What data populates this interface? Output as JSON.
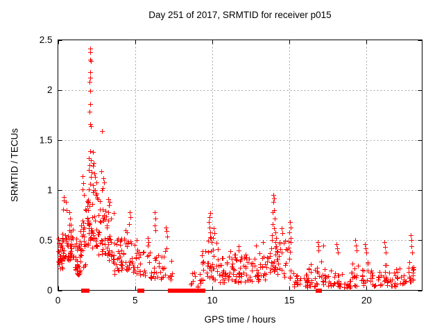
{
  "chart_data": {
    "type": "scatter",
    "title": "Day 251 of 2017, SRMTID for receiver p015",
    "xlabel": "GPS time / hours",
    "ylabel": "SRMTID / TECUs",
    "xlim": [
      0,
      23.6
    ],
    "ylim": [
      0,
      2.5
    ],
    "xticks": [
      0,
      5,
      10,
      15,
      20
    ],
    "yticks": [
      0,
      0.5,
      1,
      1.5,
      2,
      2.5
    ],
    "grid": true,
    "grid_style": "dashed",
    "legend_position": "none",
    "marker": "plus",
    "marker_color": "#ff0000",
    "grid_color": "#a0a0a0",
    "axis_color": "#000000",
    "background_color": "#ffffff",
    "series": [
      {
        "name": "SRMTID",
        "points": [
          [
            0.33,
            0.81
          ],
          [
            0.36,
            0.93
          ],
          [
            0.4,
            0.9
          ],
          [
            0.5,
            0.88
          ],
          [
            0.56,
            0.8
          ],
          [
            0.75,
            0.78
          ],
          [
            0.78,
            0.72
          ],
          [
            1.58,
            1.01
          ],
          [
            1.6,
            1.14
          ],
          [
            1.62,
            1.07
          ],
          [
            2.0,
            1.32
          ],
          [
            2.0,
            1.01
          ],
          [
            2.02,
            1.2
          ],
          [
            2.05,
            1.25
          ],
          [
            2.06,
            2.08
          ],
          [
            2.06,
            1.78
          ],
          [
            2.07,
            2.41
          ],
          [
            2.07,
            2.3
          ],
          [
            2.07,
            1.39
          ],
          [
            2.08,
            1.86
          ],
          [
            2.09,
            2.18
          ],
          [
            2.1,
            1.99
          ],
          [
            2.1,
            1.66
          ],
          [
            2.1,
            1.06
          ],
          [
            2.11,
            2.38
          ],
          [
            2.11,
            2.12
          ],
          [
            2.12,
            1.3
          ],
          [
            2.13,
            2.29
          ],
          [
            2.14,
            1.64
          ],
          [
            2.15,
            1.13
          ],
          [
            2.16,
            1.18
          ],
          [
            2.25,
            1.38
          ],
          [
            2.28,
            1.24
          ],
          [
            2.28,
            1.05
          ],
          [
            2.3,
            1.27
          ],
          [
            2.32,
            1.0
          ],
          [
            2.35,
            1.17
          ],
          [
            2.4,
            1.13
          ],
          [
            2.5,
            1.08
          ],
          [
            2.83,
            1.19
          ],
          [
            2.85,
            1.59
          ],
          [
            2.85,
            1.0
          ],
          [
            2.9,
            1.02
          ],
          [
            2.95,
            1.12
          ],
          [
            3.0,
            1.08
          ],
          [
            3.25,
            0.78
          ],
          [
            3.28,
            0.91
          ],
          [
            3.3,
            0.85
          ],
          [
            3.45,
            0.72
          ],
          [
            3.64,
            0.77
          ],
          [
            4.4,
            0.6
          ],
          [
            4.6,
            0.66
          ],
          [
            4.65,
            0.78
          ],
          [
            4.68,
            0.73
          ],
          [
            5.8,
            0.52
          ],
          [
            5.85,
            0.48
          ],
          [
            6.25,
            0.78
          ],
          [
            6.28,
            0.65
          ],
          [
            6.3,
            0.72
          ],
          [
            6.32,
            0.6
          ],
          [
            7.0,
            0.63
          ],
          [
            7.05,
            0.59
          ],
          [
            7.08,
            0.54
          ],
          [
            9.78,
            0.68
          ],
          [
            9.8,
            0.73
          ],
          [
            9.82,
            0.63
          ],
          [
            9.85,
            0.77
          ],
          [
            9.88,
            0.58
          ],
          [
            9.9,
            0.52
          ],
          [
            9.95,
            0.48
          ],
          [
            10.05,
            0.52
          ],
          [
            10.1,
            0.62
          ],
          [
            10.15,
            0.57
          ],
          [
            11.7,
            0.44
          ],
          [
            11.73,
            0.4
          ],
          [
            12.85,
            0.45
          ],
          [
            13.3,
            0.48
          ],
          [
            13.85,
            0.55
          ],
          [
            13.88,
            0.5
          ],
          [
            13.9,
            0.78
          ],
          [
            13.92,
            0.66
          ],
          [
            13.95,
            0.95
          ],
          [
            13.98,
            0.88
          ],
          [
            14.0,
            0.92
          ],
          [
            14.0,
            0.62
          ],
          [
            14.02,
            0.8
          ],
          [
            14.05,
            0.72
          ],
          [
            14.1,
            0.58
          ],
          [
            14.15,
            0.52
          ],
          [
            14.5,
            0.62
          ],
          [
            14.55,
            0.57
          ],
          [
            15.0,
            0.58
          ],
          [
            15.05,
            0.68
          ],
          [
            15.08,
            0.52
          ],
          [
            15.1,
            0.63
          ],
          [
            16.85,
            0.48
          ],
          [
            16.88,
            0.4
          ],
          [
            16.9,
            0.44
          ],
          [
            17.2,
            0.45
          ],
          [
            18.05,
            0.46
          ],
          [
            18.1,
            0.42
          ],
          [
            18.12,
            0.38
          ],
          [
            19.25,
            0.5
          ],
          [
            19.3,
            0.45
          ],
          [
            19.35,
            0.4
          ],
          [
            19.9,
            0.46
          ],
          [
            19.95,
            0.42
          ],
          [
            20.0,
            0.38
          ],
          [
            21.15,
            0.48
          ],
          [
            21.2,
            0.43
          ],
          [
            21.22,
            0.38
          ],
          [
            22.88,
            0.55
          ],
          [
            22.9,
            0.5
          ],
          [
            22.92,
            0.44
          ],
          [
            22.95,
            0.38
          ]
        ],
        "noise_bands": [
          [
            0.02,
            0.3,
            0.28,
            0.58,
            26
          ],
          [
            0.02,
            0.3,
            0.2,
            0.3,
            6
          ],
          [
            0.3,
            0.7,
            0.3,
            0.62,
            28
          ],
          [
            0.7,
            1.0,
            0.28,
            0.66,
            24
          ],
          [
            1.0,
            1.4,
            0.16,
            0.52,
            24
          ],
          [
            1.2,
            1.5,
            0.12,
            0.25,
            8
          ],
          [
            1.4,
            1.8,
            0.22,
            0.68,
            20
          ],
          [
            1.6,
            2.0,
            0.45,
            0.95,
            16
          ],
          [
            1.9,
            2.3,
            0.5,
            1.0,
            24
          ],
          [
            2.2,
            2.6,
            0.42,
            1.0,
            20
          ],
          [
            2.6,
            3.1,
            0.35,
            0.9,
            24
          ],
          [
            2.9,
            3.4,
            0.5,
            1.0,
            8
          ],
          [
            3.1,
            3.6,
            0.28,
            0.7,
            20
          ],
          [
            3.6,
            4.1,
            0.16,
            0.52,
            24
          ],
          [
            4.1,
            4.6,
            0.2,
            0.58,
            20
          ],
          [
            4.6,
            5.1,
            0.18,
            0.5,
            18
          ],
          [
            5.1,
            5.6,
            0.14,
            0.42,
            14
          ],
          [
            5.6,
            6.1,
            0.12,
            0.45,
            14
          ],
          [
            6.1,
            6.6,
            0.1,
            0.4,
            12
          ],
          [
            6.6,
            7.1,
            0.1,
            0.45,
            12
          ],
          [
            7.1,
            7.45,
            0.08,
            0.3,
            7
          ],
          [
            8.6,
            9.3,
            0.03,
            0.18,
            12
          ],
          [
            9.3,
            9.7,
            0.08,
            0.4,
            12
          ],
          [
            9.7,
            10.0,
            0.12,
            0.55,
            14
          ],
          [
            10.0,
            10.4,
            0.1,
            0.48,
            14
          ],
          [
            10.4,
            11.0,
            0.07,
            0.35,
            20
          ],
          [
            11.0,
            11.5,
            0.08,
            0.4,
            18
          ],
          [
            11.5,
            12.0,
            0.07,
            0.35,
            18
          ],
          [
            12.0,
            12.5,
            0.08,
            0.36,
            18
          ],
          [
            12.5,
            13.0,
            0.08,
            0.34,
            16
          ],
          [
            13.0,
            13.6,
            0.1,
            0.45,
            18
          ],
          [
            13.6,
            14.1,
            0.18,
            0.55,
            18
          ],
          [
            14.1,
            14.6,
            0.15,
            0.5,
            16
          ],
          [
            14.6,
            15.2,
            0.12,
            0.5,
            16
          ],
          [
            15.2,
            15.7,
            0.03,
            0.18,
            14
          ],
          [
            15.7,
            16.2,
            0.03,
            0.16,
            14
          ],
          [
            16.2,
            16.7,
            0.04,
            0.28,
            14
          ],
          [
            16.7,
            17.3,
            0.05,
            0.3,
            14
          ],
          [
            17.3,
            17.9,
            0.04,
            0.2,
            14
          ],
          [
            17.9,
            18.4,
            0.04,
            0.18,
            12
          ],
          [
            18.4,
            19.0,
            0.02,
            0.1,
            14
          ],
          [
            19.0,
            19.6,
            0.04,
            0.28,
            14
          ],
          [
            19.6,
            20.2,
            0.05,
            0.28,
            14
          ],
          [
            20.2,
            20.8,
            0.04,
            0.2,
            14
          ],
          [
            20.8,
            21.3,
            0.05,
            0.28,
            14
          ],
          [
            21.3,
            21.9,
            0.04,
            0.18,
            14
          ],
          [
            21.9,
            22.5,
            0.06,
            0.22,
            14
          ],
          [
            22.5,
            23.0,
            0.08,
            0.3,
            14
          ],
          [
            22.95,
            23.1,
            0.1,
            0.28,
            5
          ]
        ],
        "zero_runs": [
          [
            1.62,
            1.72,
            4
          ],
          [
            1.8,
            1.9,
            4
          ],
          [
            5.3,
            5.45,
            4
          ],
          [
            7.25,
            7.45,
            5
          ],
          [
            7.7,
            8.0,
            7
          ],
          [
            8.1,
            8.9,
            18
          ],
          [
            9.0,
            9.4,
            8
          ],
          [
            16.85,
            16.95,
            3
          ]
        ]
      }
    ]
  }
}
